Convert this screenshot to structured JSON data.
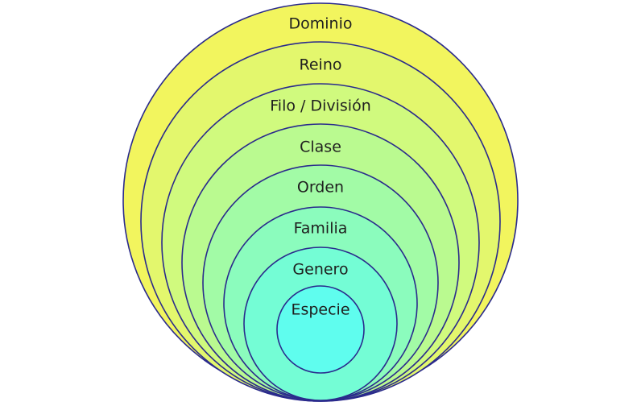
{
  "levels": [
    {
      "label": "Dominio",
      "color": "#f2f55e"
    },
    {
      "label": "Reino",
      "color": "#e3f76d"
    },
    {
      "label": "Filo / División",
      "color": "#d0fa7e"
    },
    {
      "label": "Clase",
      "color": "#bafa90"
    },
    {
      "label": "Orden",
      "color": "#a2fba6"
    },
    {
      "label": "Familia",
      "color": "#8bfcbd"
    },
    {
      "label": "Genero",
      "color": "#74fdd5"
    },
    {
      "label": "Especie",
      "color": "#5ffdee"
    }
  ],
  "border_color": "#2a2a8c"
}
